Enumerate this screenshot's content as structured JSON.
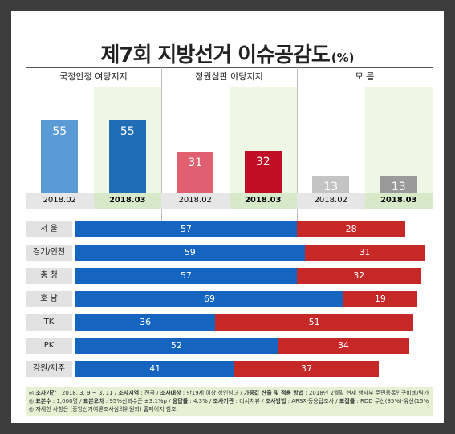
{
  "header": {
    "title": "제7회 지방선거 이슈공감도",
    "unit": "(%)"
  },
  "chart_data": [
    {
      "type": "bar",
      "groups": [
        "국정안정 여당지지",
        "정권심판 야당지지",
        "모 름"
      ],
      "categories": [
        "2018.02",
        "2018.03"
      ],
      "series": [
        {
          "name": "국정안정 여당지지",
          "values": [
            55,
            55
          ]
        },
        {
          "name": "정권심판 야당지지",
          "values": [
            31,
            32
          ]
        },
        {
          "name": "모 름",
          "values": [
            13,
            13
          ]
        }
      ],
      "colors": [
        "#5b9bd5",
        "#1f6db5",
        "#e06070",
        "#c00f24",
        "#c4c4c4",
        "#9a9a9a"
      ],
      "ylim": [
        0,
        100
      ]
    },
    {
      "type": "bar",
      "orientation": "horizontal",
      "stacked": true,
      "categories": [
        "서 울",
        "경기/인천",
        "충 청",
        "호 남",
        "TK",
        "PK",
        "강원/제주"
      ],
      "series": [
        {
          "values": [
            57,
            59,
            57,
            69,
            36,
            52,
            41
          ],
          "color": "#1565c0"
        },
        {
          "values": [
            28,
            31,
            32,
            19,
            51,
            34,
            37
          ],
          "color": "#c62828"
        }
      ]
    }
  ],
  "notes": [
    {
      "parts": [
        {
          "t": "◎ "
        },
        {
          "t": "조사기간",
          "b": true
        },
        {
          "t": " : 2018. 3. 9 ~ 3. 11 / "
        },
        {
          "t": "조사지역",
          "b": true
        },
        {
          "t": " : 전국 / "
        },
        {
          "t": "조사대상",
          "b": true
        },
        {
          "t": " : 만19세 이상 성인남녀 / "
        },
        {
          "t": "가중값 산출 및 적용 방법",
          "b": true
        },
        {
          "t": " : 2018년 2월말 현재 행자부 주민등록인구비례/림가중"
        }
      ]
    },
    {
      "parts": [
        {
          "t": "◎ "
        },
        {
          "t": "표본수",
          "b": true
        },
        {
          "t": " : 1,000명 / "
        },
        {
          "t": "표본오차",
          "b": true
        },
        {
          "t": " : 95%신뢰수준 ±3.1%p / "
        },
        {
          "t": "응답률",
          "b": true
        },
        {
          "t": " : 4.3% / "
        },
        {
          "t": "조사기관",
          "b": true
        },
        {
          "t": " : 리서치뷰 / "
        },
        {
          "t": "조사방법",
          "b": true
        },
        {
          "t": " : ARS자동응답조사 / "
        },
        {
          "t": "표집틀",
          "b": true
        },
        {
          "t": " : RDD 무선(85%)·유선(15%)"
        }
      ]
    },
    {
      "parts": [
        {
          "t": "◎ 자세한 사항은 (중앙선거여론조사심의위원회) 홈페이지 참조"
        }
      ]
    }
  ]
}
